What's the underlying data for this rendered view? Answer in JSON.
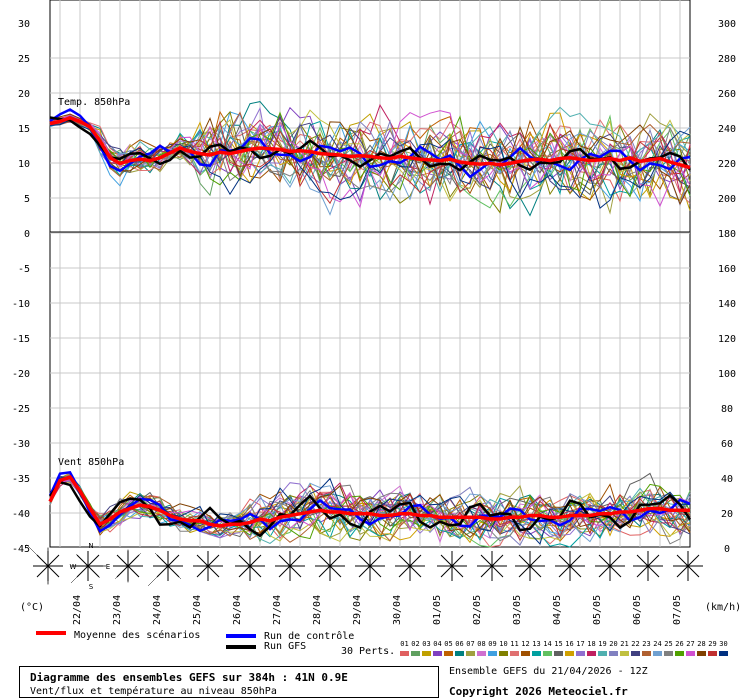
{
  "chart_data": {
    "type": "line",
    "title": "Diagramme des ensembles GEFS sur 384h : 41N 0.9E",
    "subtitle": "Vent/flux et température au niveau 850hPa",
    "run_info": "Ensemble GEFS du 21/04/2026 - 12Z",
    "copyright": "Copyright 2026 Meteociel.fr",
    "left_axis": {
      "unit": "(°C)",
      "ticks": [
        30,
        25,
        20,
        15,
        10,
        5,
        0,
        -5,
        -10,
        -15,
        -20,
        -25,
        -30,
        -35,
        -40,
        -45
      ]
    },
    "right_axis": {
      "unit": "(km/h)",
      "ticks": [
        300,
        280,
        260,
        240,
        220,
        200,
        180,
        160,
        140,
        120,
        100,
        80,
        60,
        40,
        20,
        0
      ]
    },
    "x_labels": [
      "22/04",
      "23/04",
      "24/04",
      "25/04",
      "26/04",
      "27/04",
      "28/04",
      "29/04",
      "30/04",
      "01/05",
      "02/05",
      "03/05",
      "04/05",
      "05/05",
      "06/05",
      "07/05"
    ],
    "panels": [
      {
        "label": "Temp. 850hPa",
        "ylim": [
          0,
          30
        ]
      },
      {
        "label": "Vent 850hPa",
        "ylim": [
          0,
          60
        ]
      }
    ],
    "temp_mean": [
      15.5,
      15.8,
      16.3,
      15.8,
      15.0,
      13.0,
      10.6,
      9.8,
      10.2,
      10.4,
      10.2,
      10.6,
      11.3,
      12.0,
      11.5,
      11.2,
      11.0,
      11.4,
      11.2,
      11.5,
      11.8,
      12.0,
      11.9,
      11.8,
      11.5,
      11.6,
      11.5,
      11.2,
      11.1,
      11.0,
      10.8,
      10.9,
      10.8,
      10.6,
      10.5,
      10.8,
      10.6,
      10.4,
      10.3,
      10.2,
      10.4,
      10.0,
      9.8,
      9.7,
      9.8,
      9.6,
      9.8,
      10.1,
      10.3,
      10.4,
      10.2,
      10.5,
      10.6,
      10.4,
      10.2,
      10.3,
      10.5,
      10.2,
      10.6,
      10.1,
      10.3,
      10.5,
      10.0,
      9.6,
      9.2
    ],
    "wind_mean": [
      26,
      38,
      40,
      32,
      22,
      13,
      16,
      20,
      22,
      24,
      23,
      21,
      18,
      16,
      15,
      15,
      13,
      12,
      13,
      13,
      14,
      16,
      15,
      17,
      18,
      19,
      20,
      21,
      20,
      20,
      19,
      19,
      19,
      18,
      18,
      19,
      19,
      18,
      18,
      17,
      17,
      17,
      17,
      17,
      16,
      16,
      17,
      17,
      18,
      18,
      17,
      17,
      18,
      18,
      18,
      19,
      19,
      20,
      20,
      21,
      22,
      22,
      21,
      21,
      21
    ],
    "legend": [
      {
        "label": "Moyenne des scénarios",
        "color": "#ff0000"
      },
      {
        "label": "Run de contrôle",
        "color": "#0000ff"
      },
      {
        "label": "Run GFS",
        "color": "#000000"
      }
    ],
    "perts_label": "30 Perts.",
    "perts": [
      "01",
      "02",
      "03",
      "04",
      "05",
      "06",
      "07",
      "08",
      "09",
      "10",
      "11",
      "12",
      "13",
      "14",
      "15",
      "16",
      "17",
      "18",
      "19",
      "20",
      "21",
      "22",
      "23",
      "24",
      "25",
      "26",
      "27",
      "28",
      "29",
      "30"
    ],
    "pert_colors": [
      "#e06060",
      "#60a060",
      "#c0a000",
      "#8040c0",
      "#c06000",
      "#008080",
      "#a0a040",
      "#d070d0",
      "#40a0e0",
      "#808000",
      "#e07070",
      "#a05000",
      "#00a0a0",
      "#60c060",
      "#606060",
      "#d0a000",
      "#9070d0",
      "#c02060",
      "#50b0b0",
      "#8080c0",
      "#c0c040",
      "#404080",
      "#b06030",
      "#70a0d0",
      "#808080",
      "#50a000",
      "#d050d0",
      "#804000",
      "#c03030",
      "#003080"
    ],
    "wind_rose_tick_labels": [
      "N",
      "W",
      "E",
      "S"
    ]
  }
}
